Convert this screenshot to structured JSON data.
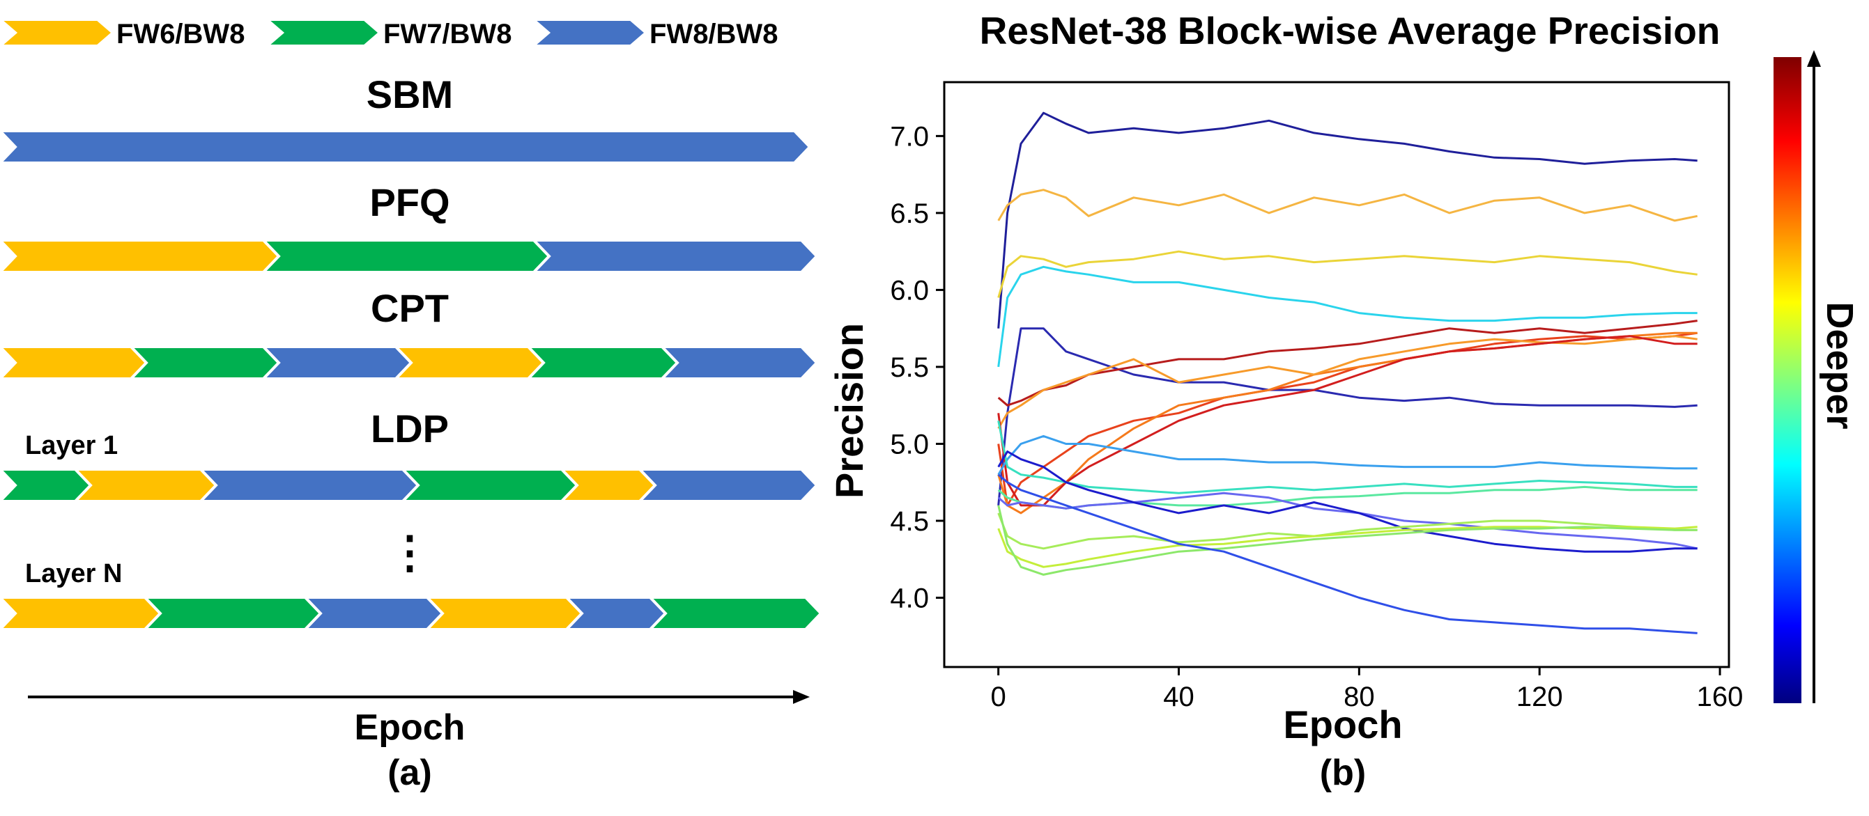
{
  "panel_a": {
    "legend": [
      {
        "label": "FW6/BW8",
        "color": "#FFC000"
      },
      {
        "label": "FW7/BW8",
        "color": "#00B050"
      },
      {
        "label": "FW8/BW8",
        "color": "#4472C4"
      }
    ],
    "rows": [
      {
        "title": "SBM",
        "segments": [
          "FW8/BW8"
        ]
      },
      {
        "title": "PFQ",
        "segments": [
          "FW6/BW8",
          "FW7/BW8",
          "FW8/BW8"
        ]
      },
      {
        "title": "CPT",
        "segments": [
          "FW6/BW8",
          "FW7/BW8",
          "FW8/BW8",
          "FW6/BW8",
          "FW7/BW8",
          "FW8/BW8"
        ]
      },
      {
        "title": "LDP",
        "sublabel": "Layer 1",
        "segments": [
          "FW7/BW8",
          "FW6/BW8",
          "FW8/BW8",
          "FW7/BW8",
          "FW6/BW8",
          "FW8/BW8"
        ]
      },
      {
        "title": "",
        "sublabel": "Layer N",
        "segments": [
          "FW6/BW8",
          "FW7/BW8",
          "FW8/BW8",
          "FW6/BW8",
          "FW8/BW8",
          "FW7/BW8"
        ]
      }
    ],
    "ellipsis": "⋮",
    "xlabel": "Epoch",
    "caption": "(a)"
  },
  "chart_data": {
    "type": "line",
    "title": "ResNet-38 Block-wise Average Precision",
    "xlabel": "Epoch",
    "ylabel": "Precision",
    "xlim": [
      -12,
      162
    ],
    "ylim": [
      3.55,
      7.35
    ],
    "xticks": [
      0,
      40,
      80,
      120,
      160
    ],
    "yticks": [
      4.0,
      4.5,
      5.0,
      5.5,
      6.0,
      6.5,
      7.0
    ],
    "x": [
      0,
      2,
      5,
      10,
      15,
      20,
      30,
      40,
      50,
      60,
      70,
      80,
      90,
      100,
      110,
      120,
      130,
      140,
      150,
      155
    ],
    "series": [
      {
        "color": "#1f1f9a",
        "values": [
          5.75,
          6.5,
          6.95,
          7.15,
          7.08,
          7.02,
          7.05,
          7.02,
          7.05,
          7.1,
          7.02,
          6.98,
          6.95,
          6.9,
          6.86,
          6.85,
          6.82,
          6.84,
          6.85,
          6.84
        ]
      },
      {
        "color": "#f5b542",
        "values": [
          6.45,
          6.55,
          6.62,
          6.65,
          6.6,
          6.48,
          6.6,
          6.55,
          6.62,
          6.5,
          6.6,
          6.55,
          6.62,
          6.5,
          6.58,
          6.6,
          6.5,
          6.55,
          6.45,
          6.48
        ]
      },
      {
        "color": "#ead438",
        "values": [
          5.95,
          6.15,
          6.22,
          6.2,
          6.15,
          6.18,
          6.2,
          6.25,
          6.2,
          6.22,
          6.18,
          6.2,
          6.22,
          6.2,
          6.18,
          6.22,
          6.2,
          6.18,
          6.12,
          6.1
        ]
      },
      {
        "color": "#2ad4ec",
        "values": [
          5.5,
          5.95,
          6.1,
          6.15,
          6.12,
          6.1,
          6.05,
          6.05,
          6.0,
          5.95,
          5.92,
          5.85,
          5.82,
          5.8,
          5.8,
          5.82,
          5.82,
          5.84,
          5.85,
          5.85
        ]
      },
      {
        "color": "#2a2ab0",
        "values": [
          4.6,
          5.2,
          5.75,
          5.75,
          5.6,
          5.55,
          5.45,
          5.4,
          5.4,
          5.35,
          5.35,
          5.3,
          5.28,
          5.3,
          5.26,
          5.25,
          5.25,
          5.25,
          5.24,
          5.25
        ]
      },
      {
        "color": "#b71c1c",
        "values": [
          5.3,
          5.25,
          5.28,
          5.35,
          5.38,
          5.45,
          5.5,
          5.55,
          5.55,
          5.6,
          5.62,
          5.65,
          5.7,
          5.75,
          5.72,
          5.75,
          5.72,
          5.75,
          5.78,
          5.8
        ]
      },
      {
        "color": "#e8421c",
        "values": [
          5.0,
          4.6,
          4.75,
          4.85,
          4.95,
          5.05,
          5.15,
          5.2,
          5.3,
          5.35,
          5.4,
          5.5,
          5.55,
          5.6,
          5.65,
          5.68,
          5.7,
          5.68,
          5.7,
          5.72
        ]
      },
      {
        "color": "#f57a1c",
        "values": [
          4.8,
          4.6,
          4.55,
          4.65,
          4.75,
          4.9,
          5.1,
          5.25,
          5.3,
          5.35,
          5.45,
          5.5,
          5.55,
          5.6,
          5.62,
          5.65,
          5.68,
          5.7,
          5.72,
          5.72
        ]
      },
      {
        "color": "#f79a2a",
        "values": [
          5.1,
          5.2,
          5.25,
          5.35,
          5.4,
          5.45,
          5.55,
          5.4,
          5.45,
          5.5,
          5.45,
          5.55,
          5.6,
          5.65,
          5.68,
          5.66,
          5.65,
          5.68,
          5.7,
          5.68
        ]
      },
      {
        "color": "#d21e1e",
        "values": [
          5.2,
          4.75,
          4.6,
          4.6,
          4.75,
          4.85,
          5.0,
          5.15,
          5.25,
          5.3,
          5.35,
          5.45,
          5.55,
          5.6,
          5.62,
          5.65,
          5.68,
          5.7,
          5.65,
          5.65
        ]
      },
      {
        "color": "#3aa0ee",
        "values": [
          4.8,
          4.9,
          5.0,
          5.05,
          5.0,
          5.0,
          4.95,
          4.9,
          4.9,
          4.88,
          4.88,
          4.86,
          4.85,
          4.85,
          4.85,
          4.88,
          4.86,
          4.85,
          4.84,
          4.84
        ]
      },
      {
        "color": "#38e0c0",
        "values": [
          5.15,
          4.85,
          4.8,
          4.78,
          4.75,
          4.72,
          4.7,
          4.68,
          4.7,
          4.72,
          4.7,
          4.72,
          4.74,
          4.72,
          4.74,
          4.76,
          4.75,
          4.74,
          4.72,
          4.72
        ]
      },
      {
        "color": "#5ae8a0",
        "values": [
          4.7,
          4.65,
          4.62,
          4.6,
          4.58,
          4.6,
          4.62,
          4.6,
          4.6,
          4.62,
          4.65,
          4.66,
          4.68,
          4.68,
          4.7,
          4.7,
          4.72,
          4.7,
          4.7,
          4.7
        ]
      },
      {
        "color": "#6868f0",
        "values": [
          4.65,
          4.6,
          4.62,
          4.6,
          4.58,
          4.6,
          4.62,
          4.65,
          4.68,
          4.65,
          4.58,
          4.55,
          4.5,
          4.48,
          4.45,
          4.42,
          4.4,
          4.38,
          4.35,
          4.32
        ]
      },
      {
        "color": "#1c1ccc",
        "values": [
          4.85,
          4.95,
          4.9,
          4.85,
          4.75,
          4.7,
          4.62,
          4.55,
          4.6,
          4.55,
          4.62,
          4.55,
          4.45,
          4.4,
          4.35,
          4.32,
          4.3,
          4.3,
          4.32,
          4.32
        ]
      },
      {
        "color": "#a6ec5a",
        "values": [
          4.55,
          4.4,
          4.35,
          4.32,
          4.35,
          4.38,
          4.4,
          4.36,
          4.38,
          4.42,
          4.4,
          4.44,
          4.46,
          4.48,
          4.5,
          4.5,
          4.48,
          4.46,
          4.44,
          4.44
        ]
      },
      {
        "color": "#c4ee3a",
        "values": [
          4.45,
          4.3,
          4.25,
          4.2,
          4.22,
          4.25,
          4.3,
          4.34,
          4.35,
          4.38,
          4.4,
          4.42,
          4.44,
          4.45,
          4.46,
          4.46,
          4.45,
          4.46,
          4.45,
          4.46
        ]
      },
      {
        "color": "#8ce86a",
        "values": [
          4.6,
          4.35,
          4.2,
          4.15,
          4.18,
          4.2,
          4.25,
          4.3,
          4.32,
          4.35,
          4.38,
          4.4,
          4.42,
          4.44,
          4.45,
          4.45,
          4.46,
          4.45,
          4.44,
          4.44
        ]
      },
      {
        "color": "#2f4fe8",
        "values": [
          4.8,
          4.75,
          4.7,
          4.65,
          4.6,
          4.55,
          4.45,
          4.35,
          4.3,
          4.2,
          4.1,
          4.0,
          3.92,
          3.86,
          3.84,
          3.82,
          3.8,
          3.8,
          3.78,
          3.77
        ]
      }
    ],
    "colorbar": {
      "label": "Deeper",
      "colors": [
        "#00007f",
        "#0000ff",
        "#00ffff",
        "#ffff00",
        "#ff0000",
        "#7f0000"
      ]
    },
    "caption": "(b)",
    "grid": false
  }
}
